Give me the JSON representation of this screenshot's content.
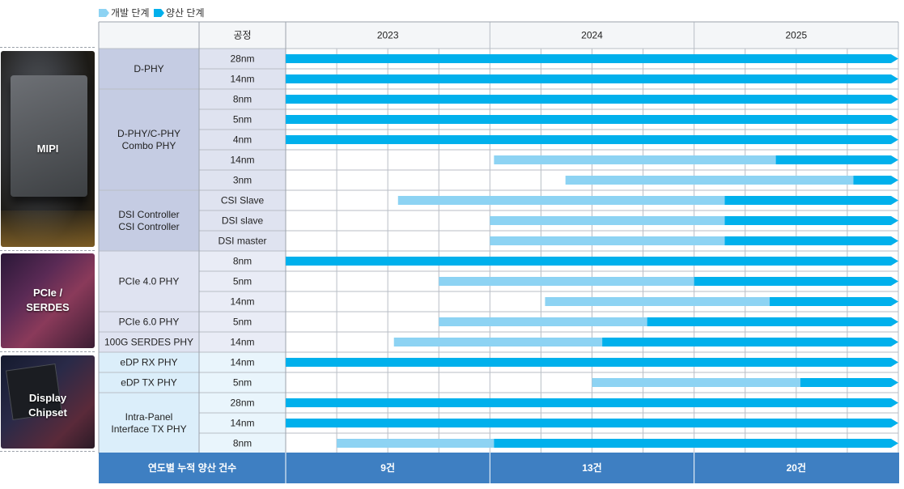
{
  "legend": {
    "development": {
      "label": "개발 단계",
      "color": "#8dd3f3"
    },
    "production": {
      "label": "양산 단계",
      "color": "#00b0ec"
    }
  },
  "header": {
    "process": "공정",
    "years": [
      "2023",
      "2024",
      "2025"
    ]
  },
  "categories": [
    {
      "label": "MIPI"
    },
    {
      "label": "PCIe /\nSERDES"
    },
    {
      "label": "Display\nChipset"
    }
  ],
  "chart_data": {
    "type": "gantt",
    "time_axis": {
      "start": 2023.0,
      "end": 2026.0,
      "ticks": [
        "2023",
        "2024",
        "2025"
      ]
    },
    "rows": [
      {
        "group": "D-PHY",
        "category": "MIPI",
        "process": "28nm",
        "dev_start": null,
        "prod_start": 2023.0
      },
      {
        "group": "D-PHY",
        "category": "MIPI",
        "process": "14nm",
        "dev_start": null,
        "prod_start": 2023.0
      },
      {
        "group": "D-PHY/C-PHY\nCombo PHY",
        "category": "MIPI",
        "process": "8nm",
        "dev_start": null,
        "prod_start": 2023.0
      },
      {
        "group": "D-PHY/C-PHY\nCombo PHY",
        "category": "MIPI",
        "process": "5nm",
        "dev_start": null,
        "prod_start": 2023.0
      },
      {
        "group": "D-PHY/C-PHY\nCombo PHY",
        "category": "MIPI",
        "process": "4nm",
        "dev_start": null,
        "prod_start": 2023.0
      },
      {
        "group": "D-PHY/C-PHY\nCombo PHY",
        "category": "MIPI",
        "process": "14nm",
        "dev_start": 2024.02,
        "prod_start": 2025.4
      },
      {
        "group": "D-PHY/C-PHY\nCombo PHY",
        "category": "MIPI",
        "process": "3nm",
        "dev_start": 2024.37,
        "prod_start": 2025.78
      },
      {
        "group": "DSI Controller\nCSI Controller",
        "category": "MIPI",
        "process": "CSI Slave",
        "dev_start": 2023.55,
        "prod_start": 2025.15
      },
      {
        "group": "DSI Controller\nCSI Controller",
        "category": "MIPI",
        "process": "DSI slave",
        "dev_start": 2024.0,
        "prod_start": 2025.15
      },
      {
        "group": "DSI Controller\nCSI Controller",
        "category": "MIPI",
        "process": "DSI master",
        "dev_start": 2024.0,
        "prod_start": 2025.15
      },
      {
        "group": "PCIe 4.0 PHY",
        "category": "PCIe / SERDES",
        "process": "8nm",
        "dev_start": null,
        "prod_start": 2023.0
      },
      {
        "group": "PCIe 4.0 PHY",
        "category": "PCIe / SERDES",
        "process": "5nm",
        "dev_start": 2023.75,
        "prod_start": 2025.0
      },
      {
        "group": "PCIe 4.0 PHY",
        "category": "PCIe / SERDES",
        "process": "14nm",
        "dev_start": 2024.27,
        "prod_start": 2025.37
      },
      {
        "group": "PCIe 6.0 PHY",
        "category": "PCIe / SERDES",
        "process": "5nm",
        "dev_start": 2023.75,
        "prod_start": 2024.77
      },
      {
        "group": "100G SERDES PHY",
        "category": "PCIe / SERDES",
        "process": "14nm",
        "dev_start": 2023.53,
        "prod_start": 2024.55
      },
      {
        "group": "eDP RX PHY",
        "category": "Display Chipset",
        "process": "14nm",
        "dev_start": null,
        "prod_start": 2023.0
      },
      {
        "group": "eDP TX PHY",
        "category": "Display Chipset",
        "process": "5nm",
        "dev_start": 2024.5,
        "prod_start": 2025.52
      },
      {
        "group": "Intra-Panel\nInterface TX PHY",
        "category": "Display Chipset",
        "process": "28nm",
        "dev_start": null,
        "prod_start": 2023.0
      },
      {
        "group": "Intra-Panel\nInterface TX PHY",
        "category": "Display Chipset",
        "process": "14nm",
        "dev_start": null,
        "prod_start": 2023.0
      },
      {
        "group": "Intra-Panel\nInterface TX PHY",
        "category": "Display Chipset",
        "process": "8nm",
        "dev_start": 2023.25,
        "prod_start": 2024.02
      }
    ],
    "footer": {
      "label": "연도별 누적 양산 건수",
      "values": [
        "9건",
        "13건",
        "20건"
      ]
    }
  }
}
